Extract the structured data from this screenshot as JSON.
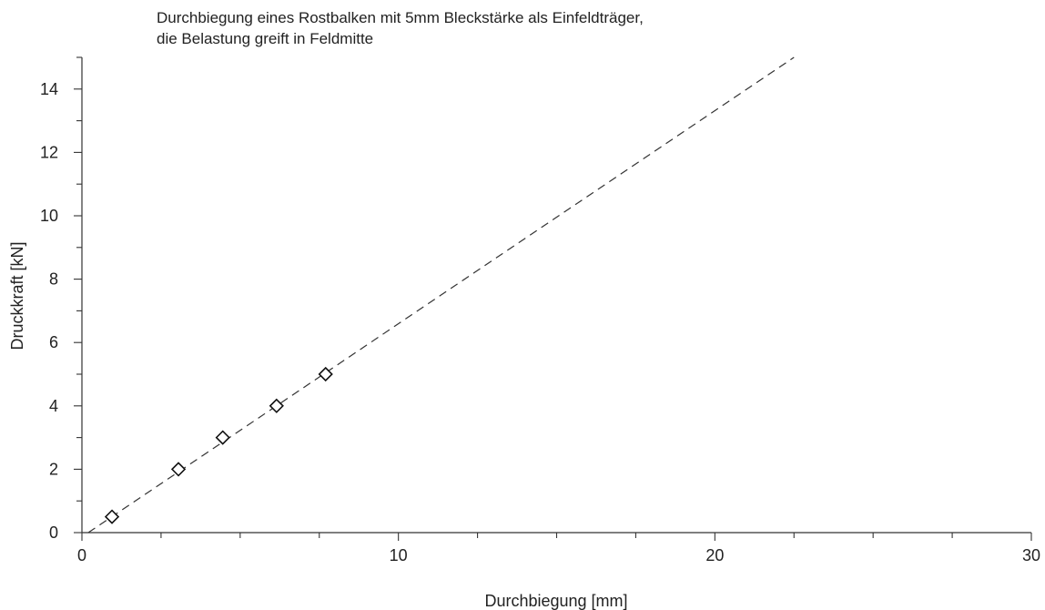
{
  "chart_data": {
    "type": "scatter",
    "title_line1": "Durchbiegung eines Rostbalken mit 5mm Bleckstärke als Einfeldträger,",
    "title_line2": "die Belastung greift in Feldmitte",
    "xlabel": "Durchbiegung [mm]",
    "ylabel": "Druckkraft [kN]",
    "xlim": [
      0,
      30
    ],
    "ylim": [
      0,
      15
    ],
    "x_major_ticks": [
      0,
      10,
      20,
      30
    ],
    "x_minor_step": 2.5,
    "y_major_ticks": [
      0,
      2,
      4,
      6,
      8,
      10,
      12,
      14
    ],
    "y_minor_step": 1,
    "grid": false,
    "legend": "none",
    "series": [
      {
        "marker": "diamond-open",
        "x": [
          0.95,
          3.05,
          4.45,
          6.15,
          7.7
        ],
        "y": [
          0.5,
          2.0,
          3.0,
          4.0,
          5.0
        ]
      }
    ],
    "trendline": {
      "style": "dashed",
      "x": [
        0.2,
        22.5
      ],
      "y": [
        0,
        15
      ]
    },
    "colors": {
      "axis": "#333333",
      "marker": "#111111",
      "trendline": "#333333"
    }
  }
}
